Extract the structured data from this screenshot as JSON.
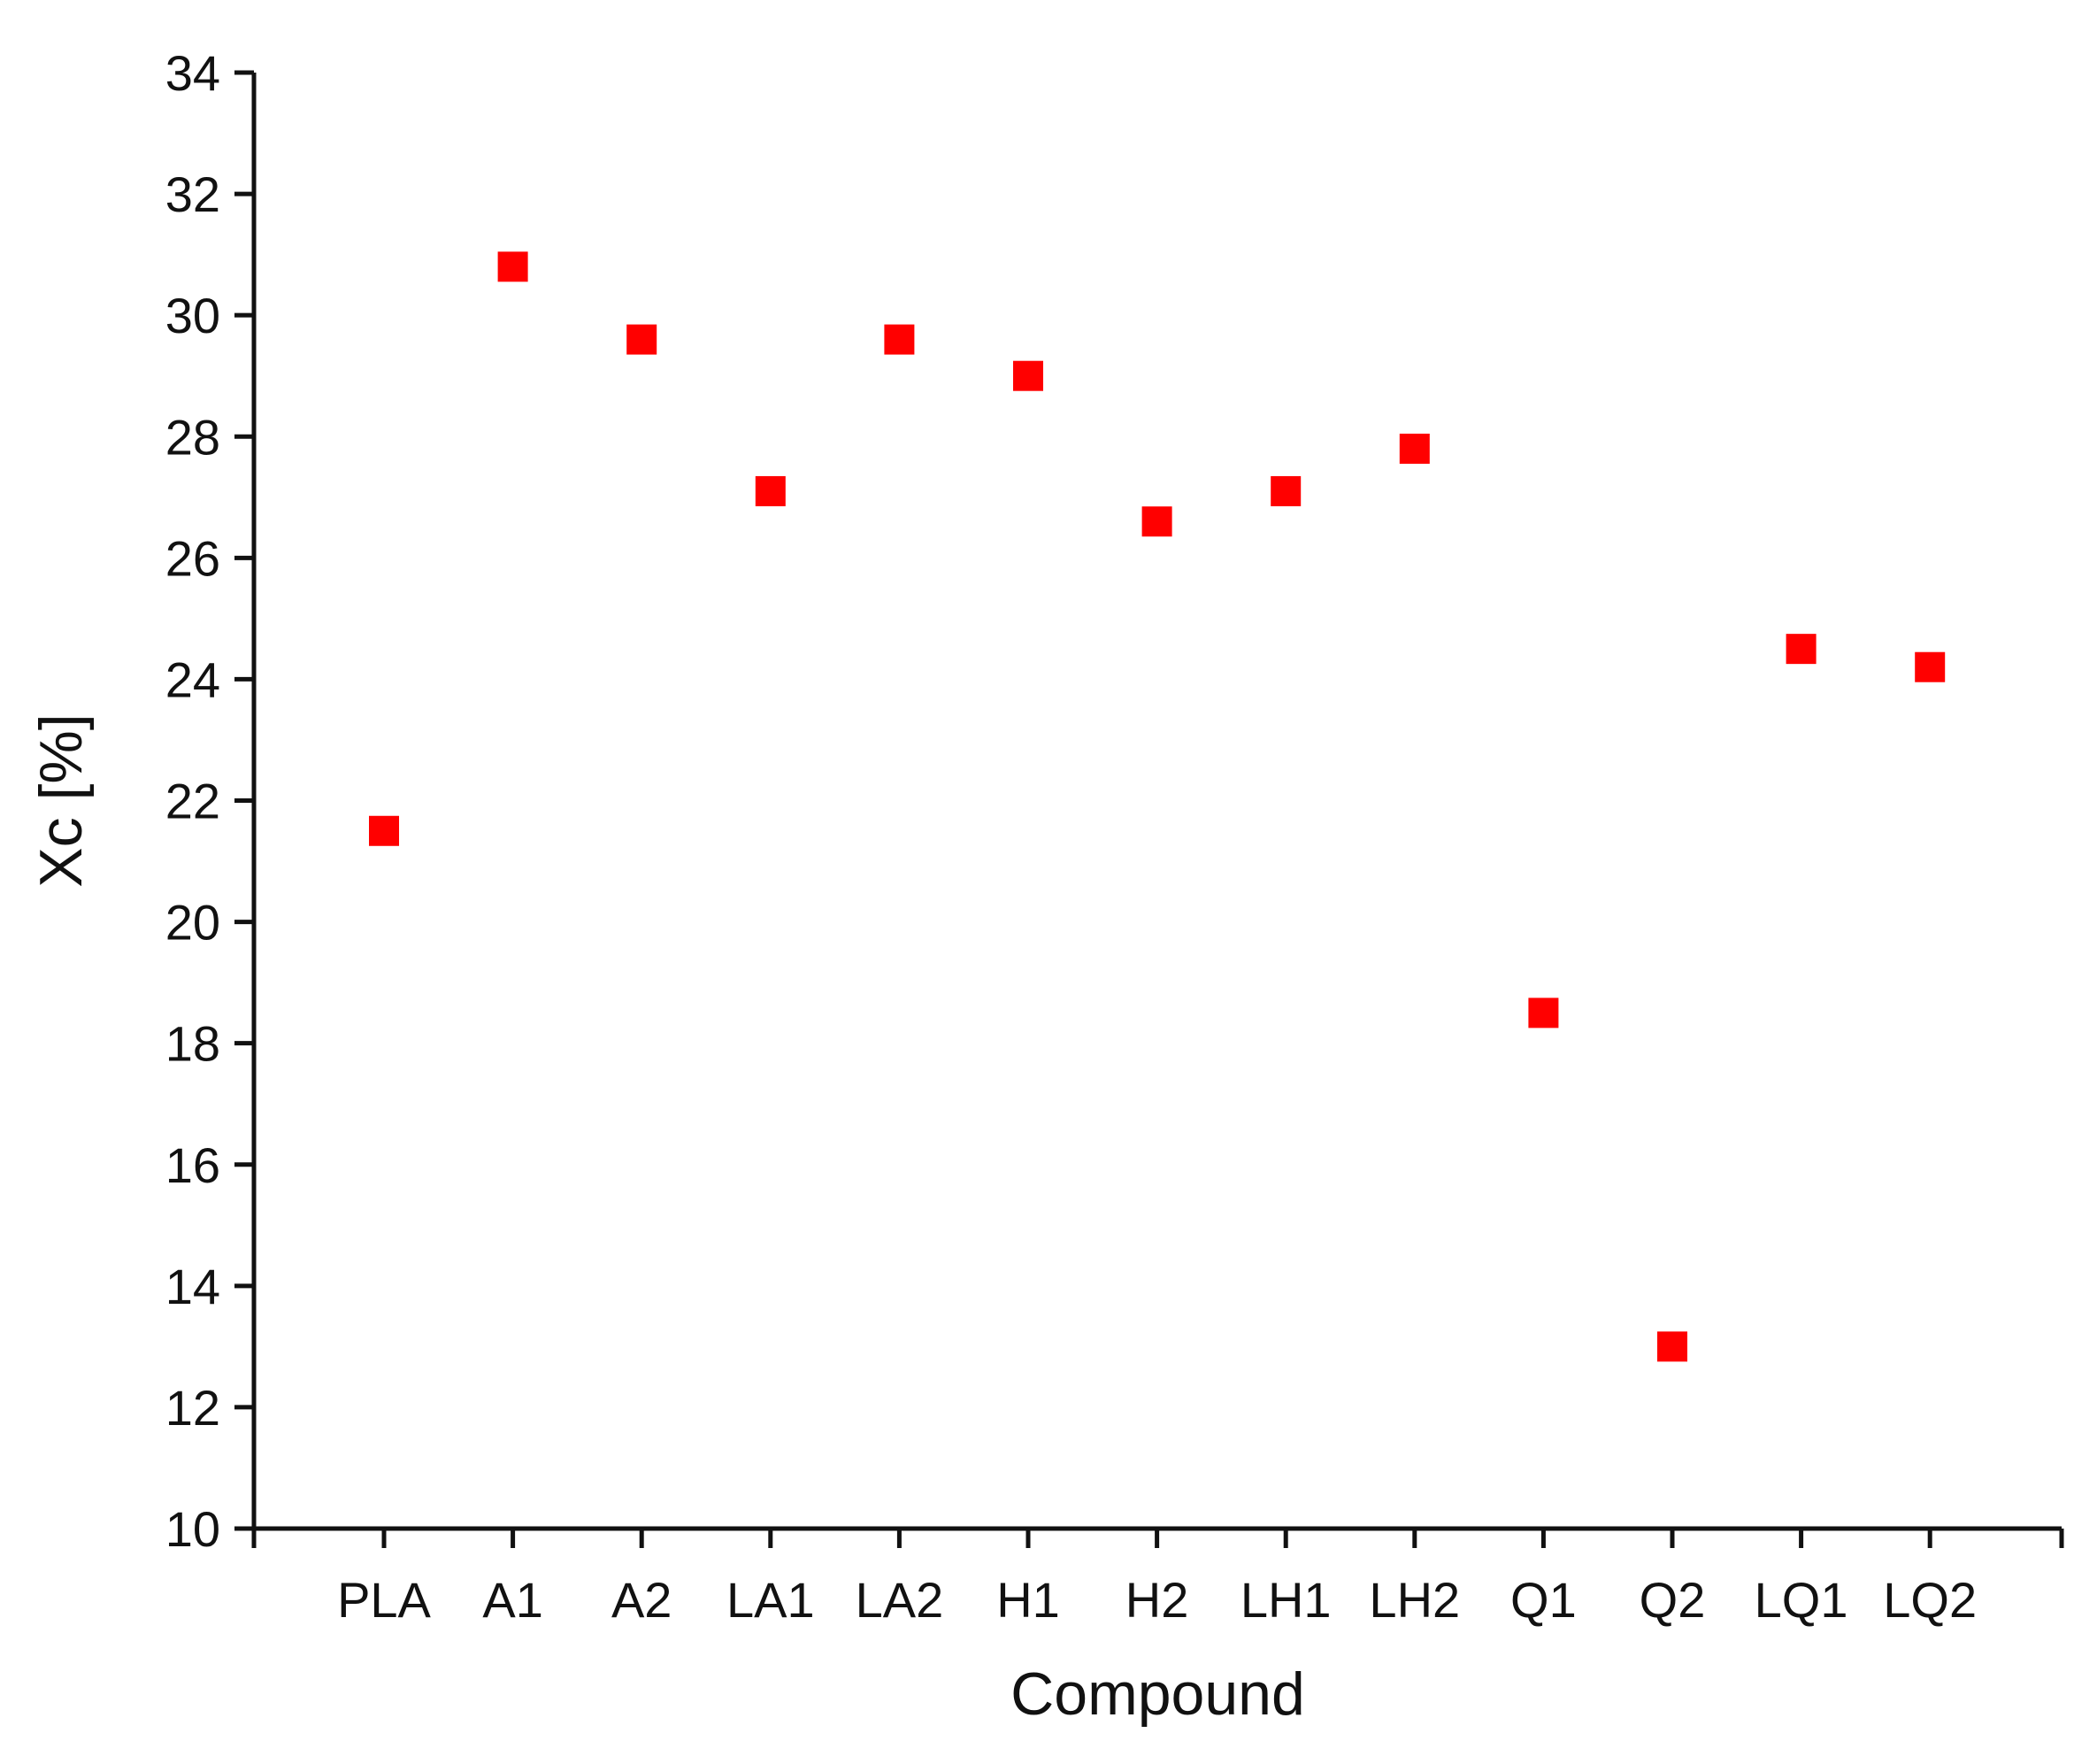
{
  "chart_data": {
    "type": "scatter",
    "xlabel": "Compound",
    "ylabel": "Xc [%]",
    "ylim": [
      10,
      34
    ],
    "yticks": [
      10,
      12,
      14,
      16,
      18,
      20,
      22,
      24,
      26,
      28,
      30,
      32,
      34
    ],
    "categories": [
      "PLA",
      "A1",
      "A2",
      "LA1",
      "LA2",
      "H1",
      "H2",
      "LH1",
      "LH2",
      "Q1",
      "Q2",
      "LQ1",
      "LQ2"
    ],
    "series": [
      {
        "values": [
          21.5,
          30.8,
          29.6,
          27.1,
          29.6,
          29.0,
          26.6,
          27.1,
          27.8,
          18.5,
          13.0,
          24.5,
          24.2
        ]
      }
    ],
    "marker": "square",
    "marker_color": "#ff0000",
    "axis_color": "#111111",
    "grid": false,
    "legend": "none"
  }
}
